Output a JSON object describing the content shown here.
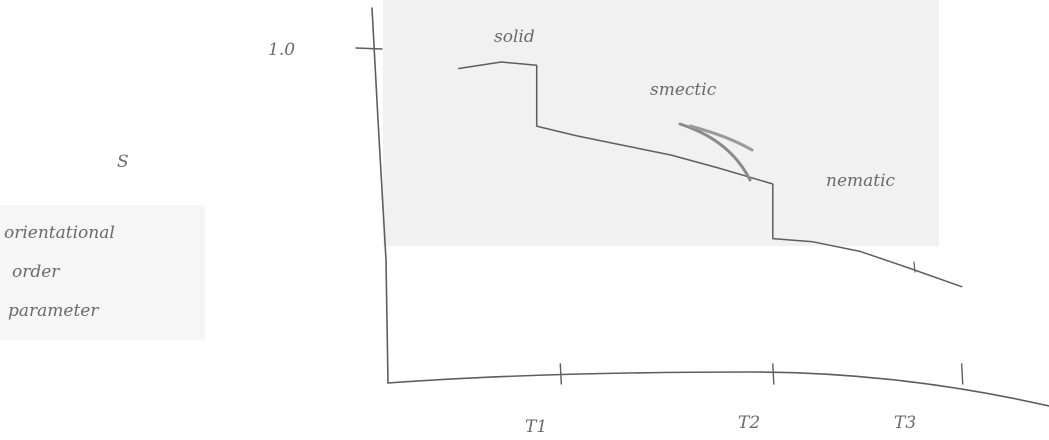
{
  "chart_data": {
    "type": "line",
    "title": "",
    "ylabel": [
      "S",
      "orientational",
      "order",
      "parameter"
    ],
    "ytick_label": "1.0",
    "xtick_labels": [
      "T1",
      "T2",
      "T3"
    ],
    "phase_labels": [
      "solid",
      "smectic",
      "nematic"
    ],
    "grid": false,
    "legend": "none",
    "series": [
      {
        "x": [
          0.3,
          0.48,
          0.63,
          0.63,
          0.8,
          1.0,
          1.2,
          1.4,
          1.63,
          1.63,
          1.8,
          2.0,
          2.2,
          2.43
        ],
        "y": [
          0.98,
          1.0,
          0.99,
          0.8,
          0.77,
          0.74,
          0.71,
          0.67,
          0.62,
          0.45,
          0.44,
          0.41,
          0.36,
          0.3
        ]
      }
    ],
    "xtick_positions": [
      0.73,
      1.63,
      2.43
    ],
    "xlim": [
      0,
      2.8
    ],
    "ylim": [
      0,
      1.05
    ],
    "colors": {
      "ink": "#5e5e5e",
      "scan_shade": "#f1f1f1"
    }
  }
}
